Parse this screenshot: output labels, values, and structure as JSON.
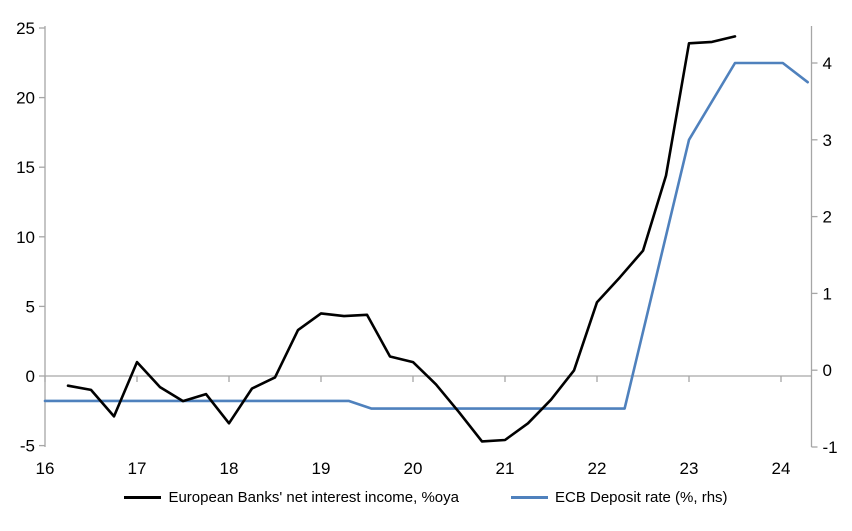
{
  "chart_data": {
    "type": "line",
    "title": "",
    "legend_position": "bottom",
    "grid": "zero-line-only",
    "x_axis": {
      "tick_labels": [
        "16",
        "17",
        "18",
        "19",
        "20",
        "21",
        "22",
        "23",
        "24"
      ],
      "tick_years": [
        16,
        17,
        18,
        19,
        20,
        21,
        22,
        23,
        24
      ],
      "range": [
        16,
        24.33
      ]
    },
    "left_axis": {
      "ticks": [
        25,
        20,
        15,
        10,
        5,
        0,
        -5
      ],
      "range": [
        -5,
        25
      ]
    },
    "right_axis": {
      "ticks": [
        4,
        3,
        2,
        1,
        0,
        -1
      ],
      "range": [
        -1,
        4
      ]
    },
    "series": [
      {
        "name": "European Banks' net interest income, %oya",
        "axis": "left",
        "color": "#000000",
        "x": [
          16.25,
          16.5,
          16.75,
          17.0,
          17.25,
          17.5,
          17.75,
          18.0,
          18.25,
          18.5,
          18.75,
          19.0,
          19.25,
          19.5,
          19.75,
          20.0,
          20.25,
          20.5,
          20.75,
          21.0,
          21.25,
          21.5,
          21.75,
          22.0,
          22.25,
          22.5,
          22.75,
          23.0,
          23.25,
          23.5
        ],
        "values": [
          -0.7,
          -1.0,
          -2.9,
          1.0,
          -0.8,
          -1.8,
          -1.3,
          -3.4,
          -0.9,
          -0.1,
          3.3,
          4.5,
          4.3,
          4.4,
          1.4,
          1.0,
          -0.6,
          -2.6,
          -4.7,
          -4.6,
          -3.4,
          -1.7,
          0.4,
          5.3,
          7.1,
          9.0,
          14.4,
          23.9,
          24.0,
          24.4
        ]
      },
      {
        "name": "ECB Deposit rate (%, rhs)",
        "axis": "right",
        "color": "#4f81bd",
        "x": [
          16.0,
          19.3,
          19.55,
          22.3,
          23.0,
          23.5,
          24.02,
          24.29
        ],
        "values": [
          -0.4,
          -0.4,
          -0.5,
          -0.5,
          3.0,
          4.0,
          4.0,
          3.75
        ]
      }
    ]
  },
  "colors": {
    "axis": "#a6a6a6",
    "zero_line": "#a6a6a6",
    "text": "#000000",
    "background": "#ffffff"
  }
}
